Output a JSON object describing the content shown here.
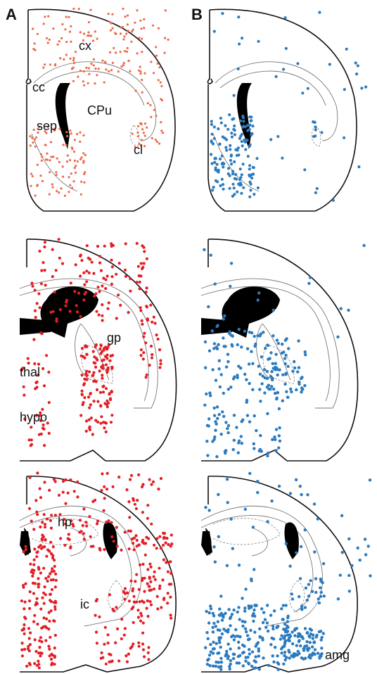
{
  "panel_labels": [
    "A",
    "B"
  ],
  "region_labels": [
    "cx",
    "cc",
    "CPu",
    "sep",
    "cl",
    "gp",
    "thal",
    "hypo",
    "hp",
    "ic",
    "amg"
  ]
}
